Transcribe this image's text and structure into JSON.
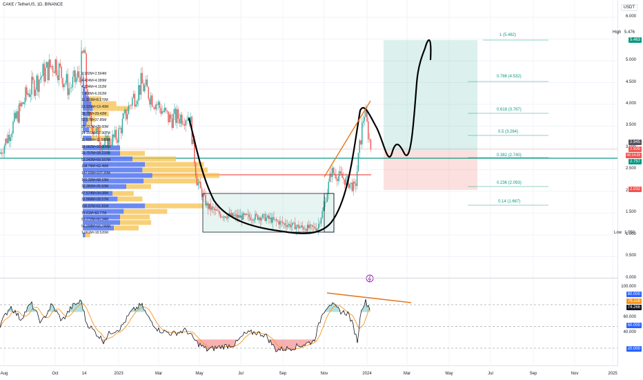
{
  "header": {
    "symbol": "CAKE / TetherUS, 1D, BINANCE",
    "currency": "USDT"
  },
  "price_axis": {
    "ticks": [
      "6.000",
      "5.000",
      "4.500",
      "4.000",
      "3.500",
      "3.000",
      "2.500",
      "2.000",
      "1.500",
      "1.000",
      "0.500",
      "0.000"
    ]
  },
  "osc_axis": {
    "ticks": [
      "100.000",
      "60.000",
      "40.000"
    ]
  },
  "time_axis": {
    "ticks": [
      "Aug",
      "Oct",
      "14",
      "2023",
      "Mar",
      "May",
      "Jul",
      "Sep",
      "Nov",
      "2024",
      "Mar",
      "May",
      "Jul",
      "Sep",
      "Nov",
      "2025"
    ]
  },
  "tags": {
    "high_label": "High",
    "high_value": "5.476",
    "target": "5.463",
    "price1": "2.945",
    "price2": "2.935",
    "countdown": "06:14:39",
    "price3": "2.757",
    "stop": "2.032",
    "low_label": "Low",
    "low_value": "1.050",
    "osc1": "80.000",
    "osc2": "76.118",
    "osc3": "74.266",
    "osc4": "50.000",
    "osc5": "20.000"
  },
  "fib_levels": {
    "f1": "1 (5.482)",
    "f786": "0.786 (4.532)",
    "f618": "0.618 (3.787)",
    "f5": "0.5 (3.264)",
    "f382": "0.382 (2.740)",
    "f236": "0.236 (2.093)",
    "f14": "0.14 (1.667)"
  },
  "volume_profile": {
    "labels": [
      "2.182M×2.594M",
      "4.424M×4.389M",
      "4.334M×4.152M",
      "7.408M×6.262M",
      "11.199M×8.170M",
      "23.939M×19.49M",
      "38.75M×29.42M",
      "52.57M×37.85M",
      "25.157M×29.60M",
      "14.191M×12.907M",
      "11.918M×11.588M",
      "18.962M×26.006M",
      "29.757M×28.233M",
      "63.242M×69.167M",
      "108.79M×62.49M",
      "147.02M×107.30M",
      "101.32M×68.19M",
      "32.282M×26.63M",
      "47.574M×34.08M",
      "32.868M×28.57M",
      "106.97M×61.81M",
      "79.61M×82.77M",
      "63.272M×66.34M",
      "56.208M×56.749M",
      "1.061M×18.526M"
    ]
  },
  "colors": {
    "up": "#26a69a",
    "down": "#ef5350",
    "rsi_line": "#131722",
    "rsi_ma": "#f7931a",
    "trendline": "#e8761b",
    "fib": "#089981",
    "vp_blue": "#5b7cf0",
    "vp_yellow": "#f5c04a"
  }
}
